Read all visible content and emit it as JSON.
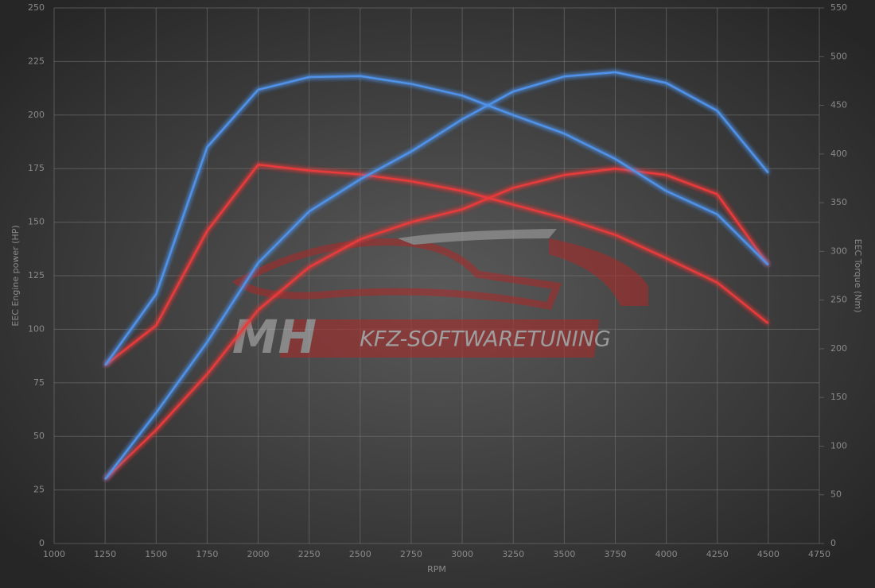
{
  "chart_data": {
    "type": "line",
    "xlabel": "RPM",
    "ylabel": "EEC Engine power (HP)",
    "y2label": "EEC Torque (Nm)",
    "watermark": {
      "logo": "MH",
      "text": "KFZ-SOFTWARETUNING"
    },
    "x": [
      1250,
      1500,
      1750,
      2000,
      2250,
      2500,
      2750,
      3000,
      3250,
      3500,
      3750,
      4000,
      4250,
      4500
    ],
    "series": [
      {
        "color": "#e83a3a",
        "values": [
          30,
          53,
          79,
          109,
          129,
          142,
          150,
          156,
          166,
          172,
          175,
          172,
          163,
          130
        ]
      },
      {
        "color": "#e83a3a",
        "axis": "y2",
        "values": [
          183,
          224,
          321,
          389,
          383,
          379,
          372,
          362,
          348,
          334,
          317,
          293,
          268,
          226
        ]
      },
      {
        "color": "#4f92ea",
        "values": [
          30,
          61,
          94,
          131,
          155,
          170,
          183,
          198,
          211,
          218,
          220,
          215,
          202,
          173
        ]
      },
      {
        "color": "#4f92ea",
        "axis": "y2",
        "values": [
          183,
          256,
          407,
          466,
          479,
          480,
          472,
          460,
          440,
          421,
          395,
          362,
          338,
          286
        ]
      }
    ],
    "xlim": [
      1000,
      4750
    ],
    "xticks": [
      1000,
      1250,
      1500,
      1750,
      2000,
      2250,
      2500,
      2750,
      3000,
      3250,
      3500,
      3750,
      4000,
      4250,
      4500,
      4750
    ],
    "ylim": [
      0,
      250
    ],
    "yticks": [
      0,
      25,
      50,
      75,
      100,
      125,
      150,
      175,
      200,
      225,
      250
    ],
    "y2lim": [
      0,
      550
    ],
    "y2ticks": [
      0,
      50,
      100,
      150,
      200,
      250,
      300,
      350,
      400,
      450,
      500,
      550
    ],
    "grid": true
  }
}
